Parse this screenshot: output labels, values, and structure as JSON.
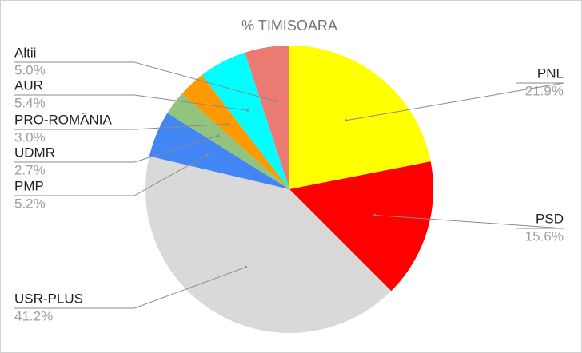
{
  "chart_data": {
    "type": "pie",
    "title": "% TIMISOARA",
    "categories": [
      "PNL",
      "PSD",
      "USR-PLUS",
      "PMP",
      "UDMR",
      "PRO-ROMÂNIA",
      "AUR",
      "Altii"
    ],
    "values": [
      21.9,
      15.6,
      41.2,
      5.2,
      2.7,
      3.0,
      5.4,
      5.0
    ],
    "value_labels": [
      "21.9%",
      "15.6%",
      "41.2%",
      "5.2%",
      "2.7%",
      "3.0%",
      "5.4%",
      "5.0%"
    ],
    "colors": [
      "#ffff00",
      "#ff0000",
      "#d9d9d9",
      "#4285f4",
      "#93c47d",
      "#ff9900",
      "#00ffff",
      "#ea7a72"
    ]
  }
}
